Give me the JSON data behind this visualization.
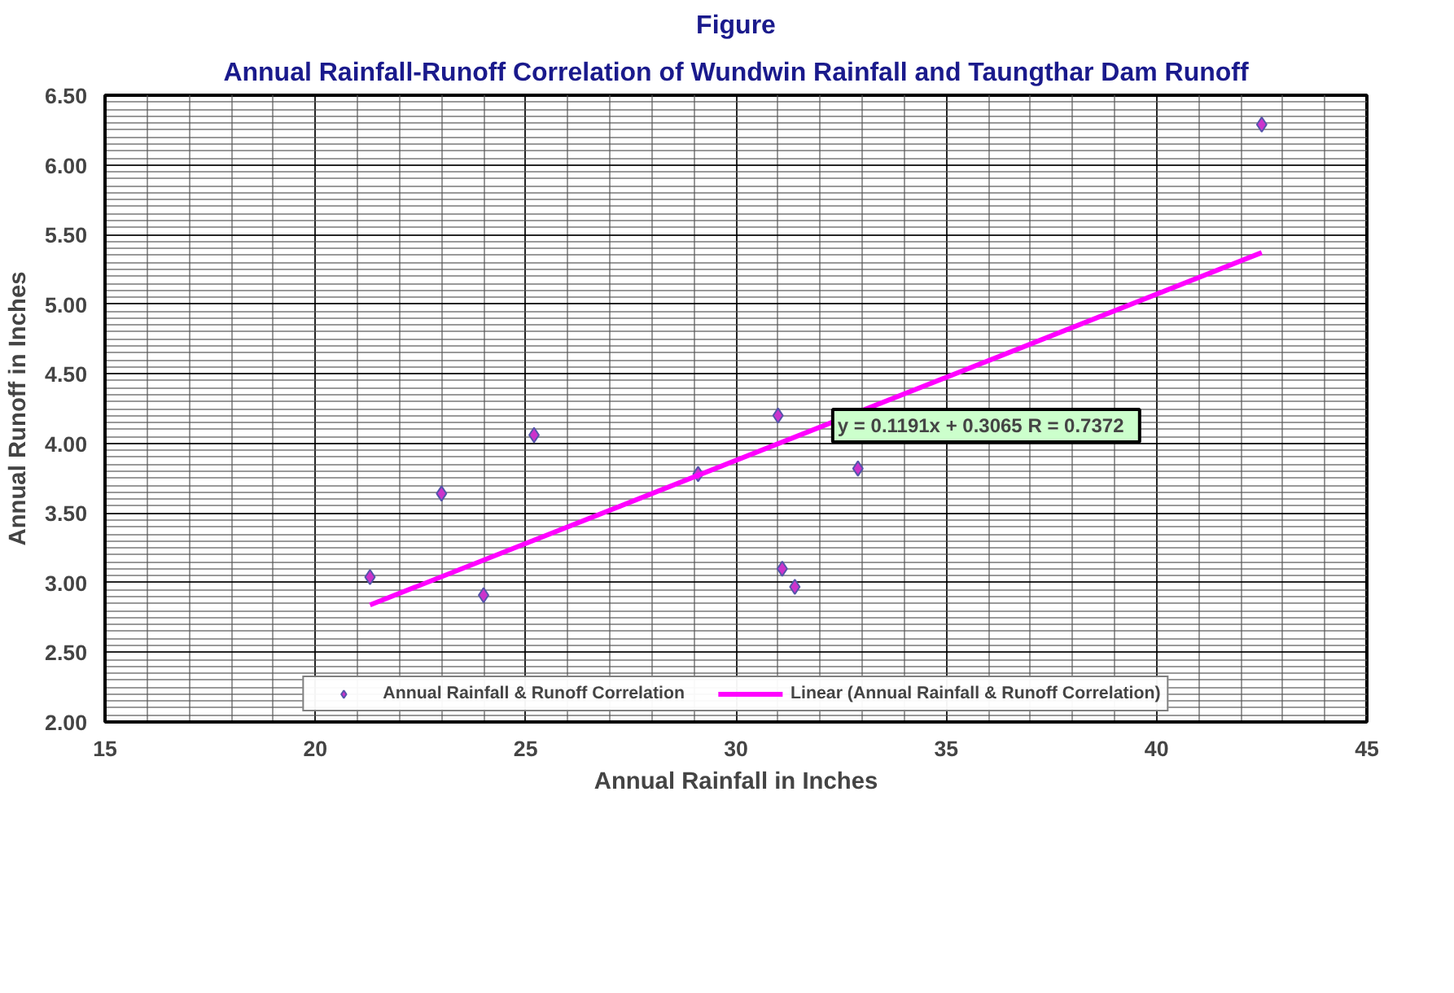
{
  "chart_data": {
    "type": "scatter",
    "title": "Figure",
    "subtitle": "Annual Rainfall-Runoff Correlation of Wundwin Rainfall and Taungthar Dam Runoff",
    "xlabel": "Annual Rainfall in Inches",
    "ylabel": "Annual Runoff in Inches",
    "xlim": [
      15,
      45
    ],
    "xticks": [
      15,
      20,
      25,
      30,
      35,
      40,
      45
    ],
    "ylim": [
      2,
      6.5
    ],
    "yticks": [
      {
        "value": 2,
        "label": "2.00"
      },
      {
        "value": 2.5,
        "label": "2.50"
      },
      {
        "value": 3,
        "label": "3.00"
      },
      {
        "value": 3.5,
        "label": "3.50"
      },
      {
        "value": 4,
        "label": "4.00"
      },
      {
        "value": 4.5,
        "label": "4.50"
      },
      {
        "value": 5,
        "label": "5.00"
      },
      {
        "value": 5.5,
        "label": "5.50"
      },
      {
        "value": 6,
        "label": "6.00"
      },
      {
        "value": 6.5,
        "label": "6.50"
      }
    ],
    "grid": true,
    "legend": "bottom",
    "series": [
      {
        "name": "Annual Rainfall & Runoff Correlation",
        "marker": "diamond",
        "color": "#cc33cc",
        "x": [
          21.3,
          23.0,
          24.0,
          25.2,
          29.1,
          31.0,
          31.1,
          31.4,
          32.9,
          42.5
        ],
        "values": [
          3.04,
          3.64,
          2.91,
          4.06,
          3.78,
          4.2,
          3.1,
          2.97,
          3.82,
          6.29
        ]
      },
      {
        "name": "Linear (Annual Rainfall & Runoff Correlation)",
        "type": "line",
        "color": "#ff00ff",
        "line_style": "solid",
        "x": [
          21.3,
          42.5
        ],
        "values": [
          2.84,
          5.37
        ]
      }
    ],
    "annotations": [
      {
        "text": "y = 0.1191x + 0.3065   R = 0.7372",
        "x": 32.3,
        "y": 4.08
      }
    ]
  }
}
